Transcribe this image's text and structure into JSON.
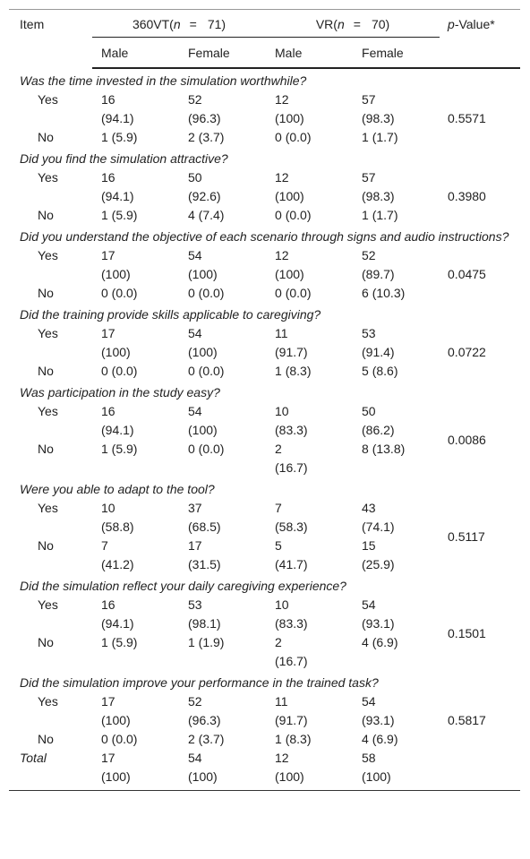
{
  "header": {
    "item": "Item",
    "groups": [
      {
        "name": "360VT(",
        "n": "n",
        "eq": "=",
        "count": "71)"
      },
      {
        "name": "VR(",
        "n": "n",
        "eq": "=",
        "count": "70)"
      }
    ],
    "p_value": {
      "p": "p",
      "rest": "-Value*"
    },
    "subheaders": [
      "Male",
      "Female",
      "Male",
      "Female"
    ]
  },
  "sections": [
    {
      "question": "Was the time invested in the simulation worthwhile?",
      "p_value": "0.5571",
      "rows": [
        {
          "label": "Yes",
          "cells": [
            [
              "16",
              "(94.1)"
            ],
            [
              "52",
              "(96.3)"
            ],
            [
              "12",
              "(100)"
            ],
            [
              "57",
              "(98.3)"
            ]
          ]
        },
        {
          "label": "No",
          "cells": [
            [
              "1 (5.9)"
            ],
            [
              "2 (3.7)"
            ],
            [
              "0 (0.0)"
            ],
            [
              "1 (1.7)"
            ]
          ]
        }
      ]
    },
    {
      "question": "Did you find the simulation attractive?",
      "p_value": "0.3980",
      "rows": [
        {
          "label": "Yes",
          "cells": [
            [
              "16",
              "(94.1)"
            ],
            [
              "50",
              "(92.6)"
            ],
            [
              "12",
              "(100)"
            ],
            [
              "57",
              "(98.3)"
            ]
          ]
        },
        {
          "label": "No",
          "cells": [
            [
              "1 (5.9)"
            ],
            [
              "4 (7.4)"
            ],
            [
              "0 (0.0)"
            ],
            [
              "1 (1.7)"
            ]
          ]
        }
      ]
    },
    {
      "question": "Did you understand the objective of each scenario through signs and audio instructions?",
      "p_value": "0.0475",
      "rows": [
        {
          "label": "Yes",
          "cells": [
            [
              "17",
              "(100)"
            ],
            [
              "54",
              "(100)"
            ],
            [
              "12",
              "(100)"
            ],
            [
              "52",
              "(89.7)"
            ]
          ]
        },
        {
          "label": "No",
          "cells": [
            [
              "0 (0.0)"
            ],
            [
              "0 (0.0)"
            ],
            [
              "0 (0.0)"
            ],
            [
              "6 (10.3)"
            ]
          ]
        }
      ]
    },
    {
      "question": "Did the training provide skills applicable to caregiving?",
      "p_value": "0.0722",
      "rows": [
        {
          "label": "Yes",
          "cells": [
            [
              "17",
              "(100)"
            ],
            [
              "54",
              "(100)"
            ],
            [
              "11",
              "(91.7)"
            ],
            [
              "53",
              "(91.4)"
            ]
          ]
        },
        {
          "label": "No",
          "cells": [
            [
              "0 (0.0)"
            ],
            [
              "0 (0.0)"
            ],
            [
              "1 (8.3)"
            ],
            [
              "5 (8.6)"
            ]
          ]
        }
      ]
    },
    {
      "question": "Was participation in the study easy?",
      "p_value": "0.0086",
      "rows": [
        {
          "label": "Yes",
          "cells": [
            [
              "16",
              "(94.1)"
            ],
            [
              "54",
              "(100)"
            ],
            [
              "10",
              "(83.3)"
            ],
            [
              "50",
              "(86.2)"
            ]
          ]
        },
        {
          "label": "No",
          "cells": [
            [
              "1 (5.9)"
            ],
            [
              "0 (0.0)"
            ],
            [
              "2",
              "(16.7)"
            ],
            [
              "8 (13.8)"
            ]
          ]
        }
      ]
    },
    {
      "question": "Were you able to adapt to the tool?",
      "p_value": "0.5117",
      "rows": [
        {
          "label": "Yes",
          "cells": [
            [
              "10",
              "(58.8)"
            ],
            [
              "37",
              "(68.5)"
            ],
            [
              "7",
              "(58.3)"
            ],
            [
              "43",
              "(74.1)"
            ]
          ]
        },
        {
          "label": "No",
          "cells": [
            [
              "7",
              "(41.2)"
            ],
            [
              "17",
              "(31.5)"
            ],
            [
              "5",
              "(41.7)"
            ],
            [
              "15",
              "(25.9)"
            ]
          ]
        }
      ]
    },
    {
      "question": "Did the simulation reflect your daily caregiving experience?",
      "p_value": "0.1501",
      "rows": [
        {
          "label": "Yes",
          "cells": [
            [
              "16",
              "(94.1)"
            ],
            [
              "53",
              "(98.1)"
            ],
            [
              "10",
              "(83.3)"
            ],
            [
              "54",
              "(93.1)"
            ]
          ]
        },
        {
          "label": "No",
          "cells": [
            [
              "1 (5.9)"
            ],
            [
              "1 (1.9)"
            ],
            [
              "2",
              "(16.7)"
            ],
            [
              "4 (6.9)"
            ]
          ]
        }
      ]
    },
    {
      "question": "Did the simulation improve your performance in the trained task?",
      "p_value": "0.5817",
      "rows": [
        {
          "label": "Yes",
          "cells": [
            [
              "17",
              "(100)"
            ],
            [
              "52",
              "(96.3)"
            ],
            [
              "11",
              "(91.7)"
            ],
            [
              "54",
              "(93.1)"
            ]
          ]
        },
        {
          "label": "No",
          "cells": [
            [
              "0 (0.0)"
            ],
            [
              "2 (3.7)"
            ],
            [
              "1 (8.3)"
            ],
            [
              "4 (6.9)"
            ]
          ]
        }
      ]
    }
  ],
  "total": {
    "label": "Total",
    "cells": [
      [
        "17",
        "(100)"
      ],
      [
        "54",
        "(100)"
      ],
      [
        "12",
        "(100)"
      ],
      [
        "58",
        "(100)"
      ]
    ]
  }
}
